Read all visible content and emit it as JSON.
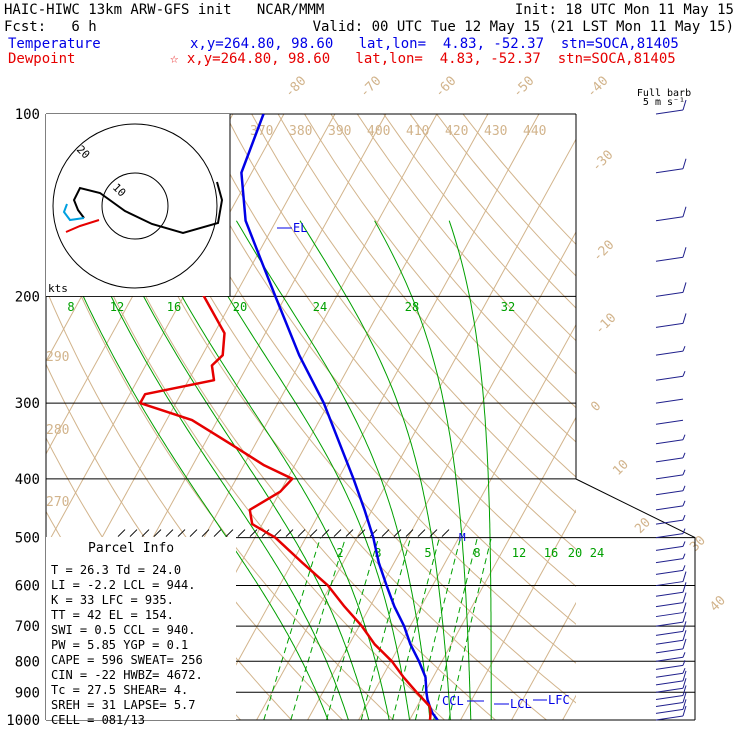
{
  "header": {
    "line1_left": "HAIC-HIWC 13km ARW-GFS init   NCAR/MMM",
    "line1_right": "Init: 18 UTC Mon 11 May 15",
    "line2_left": "Fcst:   6 h",
    "line2_right": "Valid: 00 UTC Tue 12 May 15 (21 LST Mon 11 May 15)",
    "temp_label": "Temperature",
    "temp_info": "x,y=264.80, 98.60   lat,lon=  4.83, -52.37  stn=SOCA,81405",
    "dew_label": "Dewpoint",
    "dew_info": "☆ x,y=264.80, 98.60   lat,lon=  4.83, -52.37  stn=SOCA,81405",
    "full_barb": "Full barb",
    "barb_units": "5 m s⁻¹"
  },
  "colors": {
    "temperature": "#0000e6",
    "dewpoint": "#e60000",
    "isotherm": "#d2b48c",
    "mixing_ratio": "#00a000",
    "wind": "#20208c"
  },
  "annotations": {
    "el": "EL",
    "ccl": "CCL",
    "lcl": "LCL",
    "lfc": "LFC",
    "hodo_kts": "kts",
    "hodo_ring_outer": "20",
    "hodo_ring_inner": "10",
    "m_marker": "M"
  },
  "parcel_info": {
    "title": "Parcel Info",
    "rows": [
      "T   =   26.3  Td =  24.0",
      "LI  =   -2.2  LCL =  944.",
      "K   =     33  LFC =  935.",
      "TT  =     42  EL  =  154.",
      "SWI =    0.5  CCL =  940.",
      "PW  =   5.85  YGP =   0.1",
      "CAPE =   596  SWEAT=  256",
      "CIN  =   -22  HWBZ= 4672.",
      "Tc  =   27.5  SHEAR=   4.",
      "SREH =    31  LAPSE=  5.7",
      "CELL = 081/13"
    ]
  },
  "chart_data": {
    "type": "line",
    "title": "HAIC-HIWC 13km ARW-GFS init",
    "y_axis": {
      "scale": "log",
      "ylim": [
        1000,
        100
      ],
      "ticks": [
        "100",
        "200",
        "300",
        "400",
        "500",
        "600",
        "700",
        "800",
        "900",
        "1000"
      ]
    },
    "series": [
      {
        "name": "Temperature",
        "points": [
          [
            1000,
            25.5
          ],
          [
            975,
            23.8
          ],
          [
            950,
            22.5
          ],
          [
            925,
            21.3
          ],
          [
            900,
            20.3
          ],
          [
            850,
            18.5
          ],
          [
            800,
            15.5
          ],
          [
            750,
            12.0
          ],
          [
            700,
            8.8
          ],
          [
            650,
            4.8
          ],
          [
            600,
            1.0
          ],
          [
            550,
            -3.0
          ],
          [
            500,
            -6.8
          ],
          [
            450,
            -11.5
          ],
          [
            400,
            -17.0
          ],
          [
            350,
            -23.5
          ],
          [
            300,
            -31.0
          ],
          [
            250,
            -41.0
          ],
          [
            200,
            -52.0
          ],
          [
            175,
            -58.5
          ],
          [
            150,
            -66.0
          ],
          [
            125,
            -72.0
          ],
          [
            100,
            -74.0
          ]
        ]
      },
      {
        "name": "Dewpoint",
        "points": [
          [
            1000,
            24.0
          ],
          [
            975,
            23.4
          ],
          [
            950,
            22.5
          ],
          [
            925,
            20.5
          ],
          [
            900,
            18.4
          ],
          [
            850,
            14.2
          ],
          [
            800,
            10.2
          ],
          [
            750,
            5.0
          ],
          [
            700,
            0.5
          ],
          [
            650,
            -5.0
          ],
          [
            600,
            -10.5
          ],
          [
            550,
            -18.0
          ],
          [
            500,
            -26.0
          ],
          [
            475,
            -32.0
          ],
          [
            450,
            -34.0
          ],
          [
            420,
            -30.0
          ],
          [
            400,
            -29.0
          ],
          [
            380,
            -36.0
          ],
          [
            350,
            -45.0
          ],
          [
            320,
            -55.0
          ],
          [
            300,
            -67.0
          ],
          [
            290,
            -67.0
          ],
          [
            275,
            -55.0
          ],
          [
            260,
            -57.0
          ],
          [
            250,
            -56.0
          ],
          [
            230,
            -58.0
          ],
          [
            200,
            -66.0
          ],
          [
            175,
            -74.0
          ],
          [
            150,
            -80.0
          ],
          [
            125,
            -84.0
          ],
          [
            100,
            -86.0
          ]
        ]
      }
    ],
    "dry_adiabat_labels": [
      "370",
      "380",
      "390",
      "400",
      "410",
      "420",
      "430",
      "440",
      "290",
      "280",
      "270"
    ],
    "isotherm_labels": [
      "-80",
      "-70",
      "-60",
      "-50",
      "-40",
      "-30",
      "-20",
      "-10",
      "0",
      "10",
      "20",
      "30",
      "40"
    ],
    "mixing_ratio_labels": [
      "2",
      "3",
      "5",
      "8",
      "12",
      "16",
      "20",
      "24"
    ],
    "moist_adiabat_labels": [
      "8",
      "12",
      "16",
      "20",
      "24",
      "28",
      "32"
    ],
    "winds": {
      "pressures": [
        1000,
        975,
        950,
        925,
        900,
        875,
        850,
        825,
        800,
        775,
        750,
        725,
        700,
        675,
        650,
        625,
        600,
        575,
        550,
        525,
        500,
        475,
        450,
        425,
        400,
        375,
        350,
        325,
        300,
        275,
        250,
        225,
        200,
        175,
        150,
        125,
        100
      ],
      "speed_ms": [
        6,
        5,
        5,
        5,
        5,
        5,
        4,
        4,
        4,
        5,
        5,
        5,
        5,
        6,
        6,
        6,
        5,
        4,
        4,
        3,
        3,
        3,
        4,
        4,
        4,
        3,
        3,
        2,
        2,
        3,
        4,
        5,
        6,
        6,
        7,
        6,
        5
      ]
    }
  }
}
